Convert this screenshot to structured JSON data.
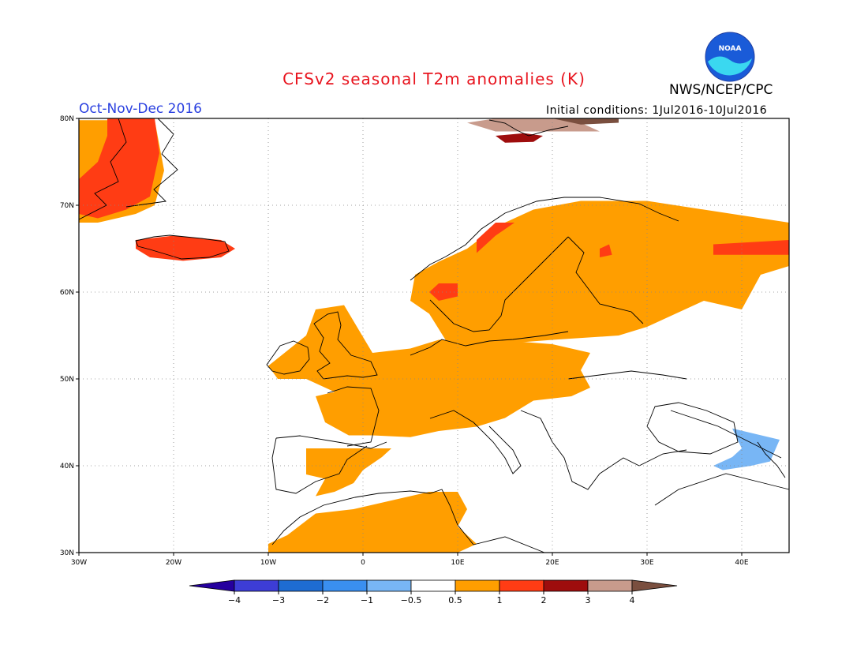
{
  "header": {
    "title": "CFSv2 seasonal T2m anomalies (K)",
    "org": "NWS/NCEP/CPC",
    "season": "Oct-Nov-Dec 2016",
    "initial_conditions": "Initial conditions: 1Jul2016-10Jul2016",
    "logo_text": "NOAA"
  },
  "map": {
    "lon_range": [
      -30,
      45
    ],
    "lat_range": [
      30,
      80
    ],
    "lon_ticks": [
      {
        "value": -30,
        "label": "30W"
      },
      {
        "value": -20,
        "label": "20W"
      },
      {
        "value": -10,
        "label": "10W"
      },
      {
        "value": 0,
        "label": "0"
      },
      {
        "value": 10,
        "label": "10E"
      },
      {
        "value": 20,
        "label": "20E"
      },
      {
        "value": 30,
        "label": "30E"
      },
      {
        "value": 40,
        "label": "40E"
      }
    ],
    "lat_ticks": [
      {
        "value": 30,
        "label": "30N"
      },
      {
        "value": 40,
        "label": "40N"
      },
      {
        "value": 50,
        "label": "50N"
      },
      {
        "value": 60,
        "label": "60N"
      },
      {
        "value": 70,
        "label": "70N"
      },
      {
        "value": 80,
        "label": "80N"
      }
    ],
    "gridlines": "dotted",
    "anomaly_regions": [
      {
        "name": "Greenland",
        "level": "0.5-1",
        "poly": [
          [
            -30,
            79.8
          ],
          [
            -22,
            79.8
          ],
          [
            -21,
            74
          ],
          [
            -22,
            70
          ],
          [
            -24,
            69
          ],
          [
            -28,
            68
          ],
          [
            -30,
            68
          ]
        ]
      },
      {
        "name": "Greenland",
        "level": "1-2",
        "poly": [
          [
            -27,
            80
          ],
          [
            -22,
            80
          ],
          [
            -21.5,
            76
          ],
          [
            -22.5,
            71
          ],
          [
            -25,
            69.5
          ],
          [
            -28,
            68.5
          ],
          [
            -30,
            69
          ],
          [
            -30,
            73
          ],
          [
            -28,
            75
          ],
          [
            -27,
            78
          ]
        ]
      },
      {
        "name": "Iceland",
        "level": "1-2",
        "poly": [
          [
            -24,
            66
          ],
          [
            -20,
            66.5
          ],
          [
            -15,
            66
          ],
          [
            -13.5,
            65
          ],
          [
            -15,
            64
          ],
          [
            -19,
            63.6
          ],
          [
            -22.5,
            64
          ],
          [
            -24,
            65
          ]
        ]
      },
      {
        "name": "Scandinavia, Finland, NW Russia",
        "level": "0.5-1",
        "poly": [
          [
            5.5,
            62
          ],
          [
            8,
            63.5
          ],
          [
            11,
            65
          ],
          [
            14,
            67.5
          ],
          [
            18,
            69.5
          ],
          [
            23,
            70.5
          ],
          [
            30,
            70.5
          ],
          [
            36,
            69.5
          ],
          [
            45,
            68
          ],
          [
            45,
            63
          ],
          [
            42,
            62
          ],
          [
            40,
            58
          ],
          [
            36,
            59
          ],
          [
            30,
            56
          ],
          [
            27,
            55
          ],
          [
            20,
            54.5
          ],
          [
            14,
            54
          ],
          [
            9,
            54
          ],
          [
            7,
            57.5
          ],
          [
            5,
            59
          ]
        ]
      },
      {
        "name": "W and Central Europe",
        "level": "0.5-1",
        "poly": [
          [
            -10,
            51.5
          ],
          [
            -6,
            55
          ],
          [
            -5,
            58
          ],
          [
            -2,
            58.5
          ],
          [
            1,
            53
          ],
          [
            5,
            53.5
          ],
          [
            8,
            54.5
          ],
          [
            14,
            54.5
          ],
          [
            20,
            54
          ],
          [
            24,
            53
          ],
          [
            23,
            51
          ],
          [
            24,
            49
          ],
          [
            22,
            48
          ],
          [
            18,
            47.5
          ],
          [
            15,
            45.5
          ],
          [
            12,
            44.5
          ],
          [
            8,
            44
          ],
          [
            5,
            43.3
          ],
          [
            1,
            43.5
          ],
          [
            -1.5,
            43.5
          ],
          [
            -4,
            45
          ],
          [
            -5,
            48
          ],
          [
            -3,
            48.5
          ],
          [
            -6,
            50
          ],
          [
            -9,
            50
          ]
        ]
      },
      {
        "name": "Iberia",
        "level": "0.5-1",
        "poly": [
          [
            -6,
            42
          ],
          [
            -4,
            42
          ],
          [
            0,
            42
          ],
          [
            3,
            42
          ],
          [
            2,
            41
          ],
          [
            0,
            39.5
          ],
          [
            -1,
            38
          ],
          [
            -3,
            37
          ],
          [
            -5,
            36.5
          ],
          [
            -4,
            38.5
          ],
          [
            -6,
            39
          ]
        ]
      },
      {
        "name": "N Africa",
        "level": "0.5-1",
        "poly": [
          [
            -8,
            32
          ],
          [
            -5,
            34.5
          ],
          [
            -1,
            35
          ],
          [
            3,
            36
          ],
          [
            7,
            37
          ],
          [
            10,
            37
          ],
          [
            11,
            35
          ],
          [
            10,
            33
          ],
          [
            12,
            31
          ],
          [
            10,
            30
          ],
          [
            -10,
            30
          ],
          [
            -10,
            31
          ]
        ]
      },
      {
        "name": "Norway coast",
        "level": "1-2",
        "poly": [
          [
            7,
            60
          ],
          [
            8,
            61
          ],
          [
            10,
            61
          ],
          [
            10,
            59.5
          ],
          [
            8,
            59
          ]
        ]
      },
      {
        "name": "Norway coast north",
        "level": "1-2",
        "poly": [
          [
            12,
            64.5
          ],
          [
            14,
            66.5
          ],
          [
            16,
            68
          ],
          [
            14,
            68
          ],
          [
            12,
            66
          ]
        ]
      },
      {
        "name": "Finland",
        "level": "1-2",
        "poly": [
          [
            25,
            65
          ],
          [
            26,
            65.5
          ],
          [
            26.3,
            64.3
          ],
          [
            25,
            64
          ]
        ]
      },
      {
        "name": "Kola",
        "level": "1-2",
        "poly": [
          [
            37,
            65.5
          ],
          [
            45,
            66
          ],
          [
            45,
            64.3
          ],
          [
            37,
            64.3
          ]
        ]
      },
      {
        "name": "Svalbard",
        "level": "2-3",
        "poly": [
          [
            14,
            78
          ],
          [
            17,
            78.3
          ],
          [
            19,
            78
          ],
          [
            18,
            77.3
          ],
          [
            15,
            77.2
          ]
        ]
      },
      {
        "name": "Svalbard",
        "level": "3-4",
        "poly": [
          [
            11,
            79.5
          ],
          [
            14,
            80
          ],
          [
            20,
            80
          ],
          [
            23,
            79.5
          ],
          [
            25,
            78.5
          ],
          [
            20,
            78.5
          ],
          [
            14,
            78.5
          ]
        ]
      },
      {
        "name": "Svalbard east",
        "level": ">4",
        "poly": [
          [
            20,
            80
          ],
          [
            27,
            80
          ],
          [
            27,
            79.5
          ],
          [
            23,
            79.3
          ]
        ]
      },
      {
        "name": "Caucasus",
        "level": "-1--0.5",
        "poly": [
          [
            39,
            44.3
          ],
          [
            44,
            43
          ],
          [
            43,
            40.5
          ],
          [
            41,
            40
          ],
          [
            38,
            39.5
          ],
          [
            37,
            40
          ],
          [
            39,
            41
          ],
          [
            40,
            42
          ]
        ]
      }
    ]
  },
  "colorbar": {
    "labels": [
      "-4",
      "-3",
      "-2",
      "-1",
      "-0.5",
      "0.5",
      "1",
      "2",
      "3",
      "4"
    ],
    "colors": [
      "#25009e",
      "#3d3dd6",
      "#1e6cd2",
      "#3a8ff0",
      "#78b6f5",
      "#ffffff",
      "#ff9e00",
      "#ff3c14",
      "#9e0d0d",
      "#c89b8c",
      "#7a4f3f"
    ]
  },
  "level_colors": {
    "-1--0.5": "#78b6f5",
    "0.5-1": "#ff9e00",
    "1-2": "#ff3c14",
    "2-3": "#9e0d0d",
    "3-4": "#c89b8c",
    ">4": "#7a4f3f"
  }
}
